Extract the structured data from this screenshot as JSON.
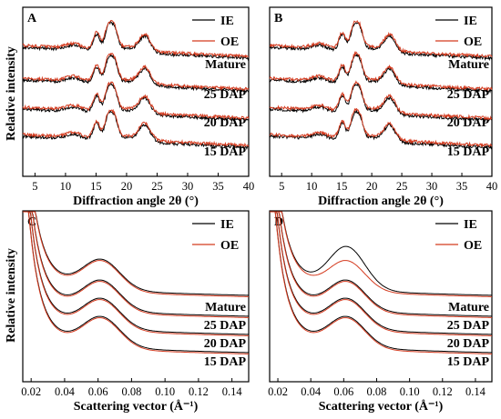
{
  "figure": {
    "ylabel": "Relative intensity"
  },
  "chart_data": [
    {
      "panel": "A",
      "type": "line",
      "xlabel": "Diffraction angle 2θ (°)",
      "ylabel": "Relative intensity",
      "xlim": [
        3,
        40
      ],
      "xticks": [
        5,
        10,
        15,
        20,
        25,
        30,
        35,
        40
      ],
      "legend": [
        {
          "name": "IE",
          "color": "#000000"
        },
        {
          "name": "OE",
          "color": "#d43a1e"
        }
      ],
      "legend_position": "top-right",
      "samples": [
        "Mature",
        "25 DAP",
        "20 DAP",
        "15 DAP"
      ],
      "peaks": [
        {
          "x": 15.1,
          "height": 0.42
        },
        {
          "x": 17.0,
          "height": 0.55
        },
        {
          "x": 18.0,
          "height": 0.5
        },
        {
          "x": 23.0,
          "height": 0.4
        }
      ]
    },
    {
      "panel": "B",
      "type": "line",
      "xlabel": "Diffraction angle 2θ (°)",
      "ylabel": "",
      "xlim": [
        3,
        40
      ],
      "xticks": [
        5,
        10,
        15,
        20,
        25,
        30,
        35,
        40
      ],
      "legend": [
        {
          "name": "IE",
          "color": "#000000"
        },
        {
          "name": "OE",
          "color": "#d43a1e"
        }
      ],
      "legend_position": "top-right",
      "samples": [
        "Mature",
        "25 DAP",
        "20 DAP",
        "15 DAP"
      ],
      "peaks": [
        {
          "x": 15.1,
          "height": 0.42
        },
        {
          "x": 17.0,
          "height": 0.55
        },
        {
          "x": 18.0,
          "height": 0.5
        },
        {
          "x": 23.0,
          "height": 0.4
        }
      ]
    },
    {
      "panel": "C",
      "type": "line",
      "xlabel": "Scattering vector (Å⁻¹)",
      "ylabel": "Relative intensity",
      "xlim": [
        0.015,
        0.15
      ],
      "xticks": [
        0.02,
        0.04,
        0.06,
        0.08,
        0.1,
        0.12,
        0.14
      ],
      "xtick_labels": [
        "0.02",
        "0.04",
        "0.06",
        "0.08",
        "0.10",
        "0.12",
        "0.14"
      ],
      "legend": [
        {
          "name": "IE",
          "color": "#000000"
        },
        {
          "name": "OE",
          "color": "#d43a1e"
        }
      ],
      "legend_position": "top-right",
      "samples": [
        "Mature",
        "25 DAP",
        "20 DAP",
        "15 DAP"
      ],
      "peak_position": 0.062
    },
    {
      "panel": "D",
      "type": "line",
      "xlabel": "Scattering vector (Å⁻¹)",
      "ylabel": "",
      "xlim": [
        0.015,
        0.15
      ],
      "xticks": [
        0.02,
        0.04,
        0.06,
        0.08,
        0.1,
        0.12,
        0.14
      ],
      "xtick_labels": [
        "0.02",
        "0.04",
        "0.06",
        "0.08",
        "0.10",
        "0.12",
        "0.14"
      ],
      "legend": [
        {
          "name": "IE",
          "color": "#000000"
        },
        {
          "name": "OE",
          "color": "#d43a1e"
        }
      ],
      "legend_position": "top-right",
      "samples": [
        "Mature",
        "25 DAP",
        "20 DAP",
        "15 DAP"
      ],
      "peak_position": 0.062
    }
  ]
}
